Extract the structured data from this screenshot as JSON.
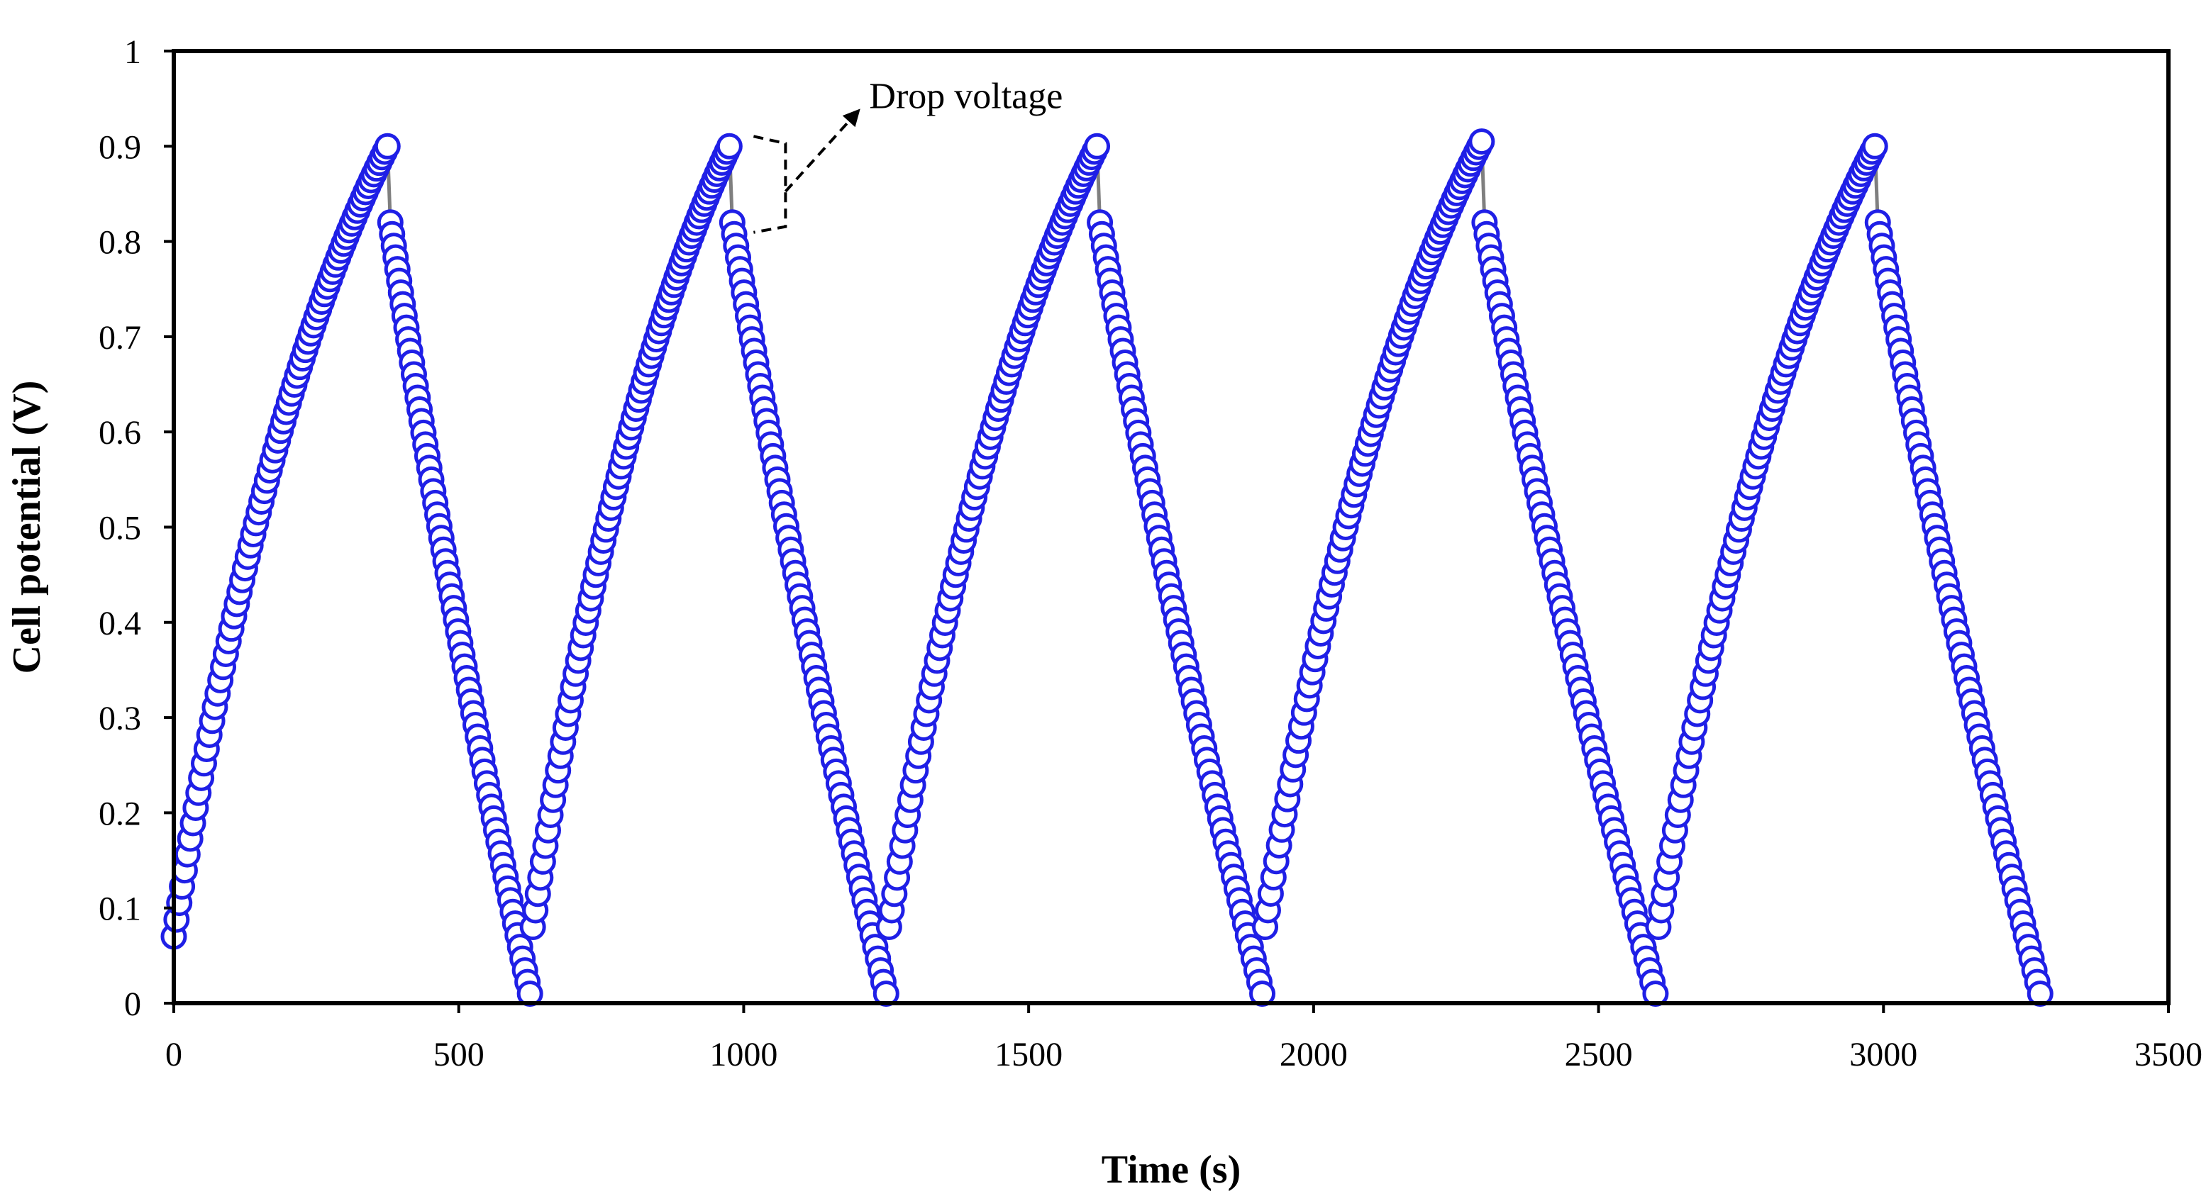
{
  "chart_data": {
    "type": "scatter",
    "title": "",
    "xlabel": "Time (s)",
    "ylabel": "Cell potential (V)",
    "xlim": [
      0,
      3500
    ],
    "ylim": [
      0,
      1
    ],
    "x_ticks": [
      0,
      500,
      1000,
      1500,
      2000,
      2500,
      3000,
      3500
    ],
    "y_ticks": [
      0,
      0.1,
      0.2,
      0.3,
      0.4,
      0.5,
      0.6,
      0.7,
      0.8,
      0.9,
      1
    ],
    "x_tick_labels": [
      "0",
      "500",
      "1000",
      "1500",
      "2000",
      "2500",
      "3000",
      "3500"
    ],
    "y_tick_labels": [
      "0",
      "0.1",
      "0.2",
      "0.3",
      "0.4",
      "0.5",
      "0.6",
      "0.7",
      "0.8",
      "0.9",
      "1"
    ],
    "grid": false,
    "marker": "open-circle",
    "colors": {
      "marker_stroke": "#1f1fe6",
      "marker_fill": "#ffffff",
      "connector": "#7f7f7f",
      "axis": "#000000"
    },
    "annotation": {
      "text": "Drop voltage",
      "target_x": 990,
      "target_y_top": 0.9,
      "target_y_bottom": 0.82
    },
    "series": [
      {
        "name": "Cell potential",
        "cycles": [
          {
            "charge_start": [
              0,
              0.07
            ],
            "charge_end": [
              375,
              0.9
            ],
            "discharge_start": [
              380,
              0.82
            ],
            "discharge_end": [
              625,
              0.01
            ]
          },
          {
            "charge_start": [
              630,
              0.08
            ],
            "charge_end": [
              975,
              0.9
            ],
            "discharge_start": [
              980,
              0.82
            ],
            "discharge_end": [
              1250,
              0.01
            ]
          },
          {
            "charge_start": [
              1255,
              0.08
            ],
            "charge_end": [
              1620,
              0.9
            ],
            "discharge_start": [
              1625,
              0.82
            ],
            "discharge_end": [
              1910,
              0.01
            ]
          },
          {
            "charge_start": [
              1915,
              0.08
            ],
            "charge_end": [
              2295,
              0.905
            ],
            "discharge_start": [
              2300,
              0.82
            ],
            "discharge_end": [
              2600,
              0.01
            ]
          },
          {
            "charge_start": [
              2605,
              0.08
            ],
            "charge_end": [
              2985,
              0.9
            ],
            "discharge_start": [
              2990,
              0.82
            ],
            "discharge_end": [
              3275,
              0.01
            ]
          }
        ]
      }
    ]
  }
}
